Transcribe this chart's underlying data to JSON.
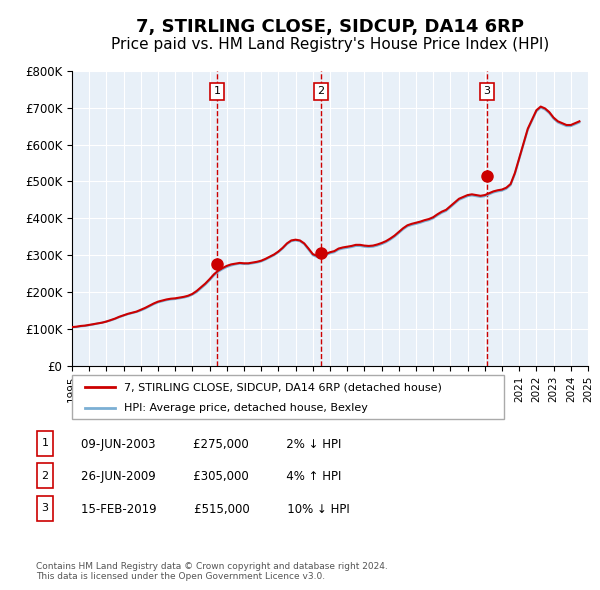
{
  "title": "7, STIRLING CLOSE, SIDCUP, DA14 6RP",
  "subtitle": "Price paid vs. HM Land Registry's House Price Index (HPI)",
  "title_fontsize": 13,
  "subtitle_fontsize": 11,
  "background_color": "#ffffff",
  "plot_bg_color": "#e8f0f8",
  "grid_color": "#ffffff",
  "hpi_line_color": "#7bafd4",
  "price_line_color": "#cc0000",
  "marker_color": "#cc0000",
  "xlim": [
    1995,
    2025
  ],
  "ylim": [
    0,
    800000
  ],
  "ytick_values": [
    0,
    100000,
    200000,
    300000,
    400000,
    500000,
    600000,
    700000,
    800000
  ],
  "ytick_labels": [
    "£0",
    "£100K",
    "£200K",
    "£300K",
    "£400K",
    "£500K",
    "£600K",
    "£700K",
    "£800K"
  ],
  "xtick_years": [
    1995,
    1996,
    1997,
    1998,
    1999,
    2000,
    2001,
    2002,
    2003,
    2004,
    2005,
    2006,
    2007,
    2008,
    2009,
    2010,
    2011,
    2012,
    2013,
    2014,
    2015,
    2016,
    2017,
    2018,
    2019,
    2020,
    2021,
    2022,
    2023,
    2024,
    2025
  ],
  "sale_dates": [
    2003.44,
    2009.48,
    2019.12
  ],
  "sale_prices": [
    275000,
    305000,
    515000
  ],
  "sale_labels": [
    "1",
    "2",
    "3"
  ],
  "legend_price_label": "7, STIRLING CLOSE, SIDCUP, DA14 6RP (detached house)",
  "legend_hpi_label": "HPI: Average price, detached house, Bexley",
  "table_rows": [
    {
      "num": "1",
      "date": "09-JUN-2003",
      "price": "£275,000",
      "hpi": "2% ↓ HPI"
    },
    {
      "num": "2",
      "date": "26-JUN-2009",
      "price": "£305,000",
      "hpi": "4% ↑ HPI"
    },
    {
      "num": "3",
      "date": "15-FEB-2019",
      "price": "£515,000",
      "hpi": "10% ↓ HPI"
    }
  ],
  "footer": "Contains HM Land Registry data © Crown copyright and database right 2024.\nThis data is licensed under the Open Government Licence v3.0.",
  "hpi_data_x": [
    1995.0,
    1995.25,
    1995.5,
    1995.75,
    1996.0,
    1996.25,
    1996.5,
    1996.75,
    1997.0,
    1997.25,
    1997.5,
    1997.75,
    1998.0,
    1998.25,
    1998.5,
    1998.75,
    1999.0,
    1999.25,
    1999.5,
    1999.75,
    2000.0,
    2000.25,
    2000.5,
    2000.75,
    2001.0,
    2001.25,
    2001.5,
    2001.75,
    2002.0,
    2002.25,
    2002.5,
    2002.75,
    2003.0,
    2003.25,
    2003.5,
    2003.75,
    2004.0,
    2004.25,
    2004.5,
    2004.75,
    2005.0,
    2005.25,
    2005.5,
    2005.75,
    2006.0,
    2006.25,
    2006.5,
    2006.75,
    2007.0,
    2007.25,
    2007.5,
    2007.75,
    2008.0,
    2008.25,
    2008.5,
    2008.75,
    2009.0,
    2009.25,
    2009.5,
    2009.75,
    2010.0,
    2010.25,
    2010.5,
    2010.75,
    2011.0,
    2011.25,
    2011.5,
    2011.75,
    2012.0,
    2012.25,
    2012.5,
    2012.75,
    2013.0,
    2013.25,
    2013.5,
    2013.75,
    2014.0,
    2014.25,
    2014.5,
    2014.75,
    2015.0,
    2015.25,
    2015.5,
    2015.75,
    2016.0,
    2016.25,
    2016.5,
    2016.75,
    2017.0,
    2017.25,
    2017.5,
    2017.75,
    2018.0,
    2018.25,
    2018.5,
    2018.75,
    2019.0,
    2019.25,
    2019.5,
    2019.75,
    2020.0,
    2020.25,
    2020.5,
    2020.75,
    2021.0,
    2021.25,
    2021.5,
    2021.75,
    2022.0,
    2022.25,
    2022.5,
    2022.75,
    2023.0,
    2023.25,
    2023.5,
    2023.75,
    2024.0,
    2024.25,
    2024.5
  ],
  "hpi_data_y": [
    105000,
    105000,
    107000,
    108000,
    110000,
    112000,
    115000,
    117000,
    120000,
    123000,
    127000,
    132000,
    136000,
    140000,
    143000,
    146000,
    150000,
    155000,
    161000,
    167000,
    172000,
    175000,
    178000,
    180000,
    181000,
    183000,
    185000,
    188000,
    193000,
    200000,
    210000,
    220000,
    232000,
    245000,
    255000,
    262000,
    268000,
    272000,
    275000,
    277000,
    276000,
    276000,
    278000,
    280000,
    283000,
    288000,
    294000,
    300000,
    308000,
    318000,
    330000,
    338000,
    340000,
    338000,
    330000,
    315000,
    300000,
    295000,
    295000,
    300000,
    305000,
    308000,
    315000,
    318000,
    320000,
    322000,
    325000,
    325000,
    323000,
    322000,
    323000,
    326000,
    330000,
    335000,
    342000,
    350000,
    360000,
    370000,
    378000,
    382000,
    385000,
    388000,
    392000,
    395000,
    400000,
    408000,
    415000,
    420000,
    430000,
    440000,
    450000,
    455000,
    460000,
    462000,
    460000,
    458000,
    460000,
    465000,
    470000,
    473000,
    475000,
    480000,
    490000,
    520000,
    560000,
    600000,
    640000,
    665000,
    690000,
    700000,
    695000,
    685000,
    670000,
    660000,
    655000,
    650000,
    650000,
    655000,
    660000
  ],
  "price_data_x": [
    1995.0,
    1995.25,
    1995.5,
    1995.75,
    1996.0,
    1996.25,
    1996.5,
    1996.75,
    1997.0,
    1997.25,
    1997.5,
    1997.75,
    1998.0,
    1998.25,
    1998.5,
    1998.75,
    1999.0,
    1999.25,
    1999.5,
    1999.75,
    2000.0,
    2000.25,
    2000.5,
    2000.75,
    2001.0,
    2001.25,
    2001.5,
    2001.75,
    2002.0,
    2002.25,
    2002.5,
    2002.75,
    2003.0,
    2003.25,
    2003.5,
    2003.75,
    2004.0,
    2004.25,
    2004.5,
    2004.75,
    2005.0,
    2005.25,
    2005.5,
    2005.75,
    2006.0,
    2006.25,
    2006.5,
    2006.75,
    2007.0,
    2007.25,
    2007.5,
    2007.75,
    2008.0,
    2008.25,
    2008.5,
    2008.75,
    2009.0,
    2009.25,
    2009.5,
    2009.75,
    2010.0,
    2010.25,
    2010.5,
    2010.75,
    2011.0,
    2011.25,
    2011.5,
    2011.75,
    2012.0,
    2012.25,
    2012.5,
    2012.75,
    2013.0,
    2013.25,
    2013.5,
    2013.75,
    2014.0,
    2014.25,
    2014.5,
    2014.75,
    2015.0,
    2015.25,
    2015.5,
    2015.75,
    2016.0,
    2016.25,
    2016.5,
    2016.75,
    2017.0,
    2017.25,
    2017.5,
    2017.75,
    2018.0,
    2018.25,
    2018.5,
    2018.75,
    2019.0,
    2019.25,
    2019.5,
    2019.75,
    2020.0,
    2020.25,
    2020.5,
    2020.75,
    2021.0,
    2021.25,
    2021.5,
    2021.75,
    2022.0,
    2022.25,
    2022.5,
    2022.75,
    2023.0,
    2023.25,
    2023.5,
    2023.75,
    2024.0,
    2024.25,
    2024.5
  ],
  "price_data_y": [
    105000,
    106000,
    108000,
    109000,
    111000,
    113000,
    115000,
    117000,
    120000,
    124000,
    128000,
    133000,
    137000,
    141000,
    144000,
    147000,
    152000,
    157000,
    163000,
    169000,
    174000,
    177000,
    180000,
    182000,
    183000,
    185000,
    187000,
    190000,
    195000,
    203000,
    213000,
    223000,
    235000,
    248000,
    258000,
    265000,
    271000,
    275000,
    277000,
    279000,
    278000,
    278000,
    280000,
    282000,
    285000,
    290000,
    296000,
    302000,
    310000,
    320000,
    332000,
    340000,
    342000,
    340000,
    332000,
    318000,
    303000,
    298000,
    298000,
    303000,
    308000,
    311000,
    318000,
    321000,
    323000,
    325000,
    328000,
    328000,
    326000,
    325000,
    326000,
    329000,
    333000,
    338000,
    345000,
    353000,
    363000,
    373000,
    381000,
    385000,
    388000,
    391000,
    395000,
    398000,
    403000,
    411000,
    418000,
    423000,
    433000,
    443000,
    453000,
    458000,
    463000,
    465000,
    463000,
    461000,
    463000,
    468000,
    473000,
    476000,
    478000,
    483000,
    493000,
    523000,
    563000,
    603000,
    643000,
    668000,
    693000,
    703000,
    698000,
    688000,
    673000,
    663000,
    658000,
    653000,
    653000,
    658000,
    663000
  ]
}
